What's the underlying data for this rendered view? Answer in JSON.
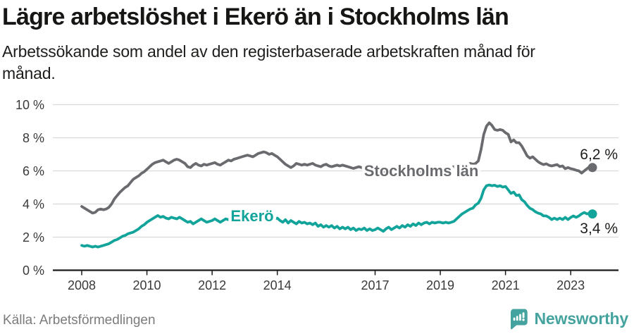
{
  "header": {
    "title": "Lägre arbetslöshet i Ekerö än i Stockholms län",
    "subtitle": "Arbetssökande som andel av den registerbaserade arbetskraften månad för månad."
  },
  "footer": {
    "source": "Källa: Arbetsförmedlingen",
    "brand": "Newsworthy",
    "brand_color": "#44a39e"
  },
  "chart_data": {
    "type": "line",
    "title": "Lägre arbetslöshet i Ekerö än i Stockholms län",
    "xlabel": "",
    "ylabel": "",
    "ylim": [
      0,
      10
    ],
    "grid": "horizontal",
    "legend_position": "inline-labels-on-lines",
    "x_unit": "month",
    "x_start": {
      "year": 2008,
      "month": 1
    },
    "x_end": {
      "year": 2023,
      "month": 9
    },
    "x_ticks": [
      2008,
      2010,
      2012,
      2014,
      2017,
      2019,
      2021,
      2023
    ],
    "y_ticks": [
      "0 %",
      "2 %",
      "4 %",
      "6 %",
      "8 %",
      "10 %"
    ],
    "axis_color": "#1a1a1a",
    "grid_color": "#dadada",
    "tick_label_color": "#3a3a3a",
    "end_label_color": "#1d1d1b",
    "series": [
      {
        "name": "Stockholms län",
        "color": "#6a6b6f",
        "end_label": "6,2 %",
        "last_value": 6.2,
        "values": [
          3.85,
          3.75,
          3.65,
          3.55,
          3.45,
          3.5,
          3.65,
          3.7,
          3.65,
          3.7,
          3.8,
          4.0,
          4.3,
          4.5,
          4.7,
          4.85,
          5.0,
          5.1,
          5.3,
          5.5,
          5.6,
          5.7,
          5.85,
          5.95,
          6.1,
          6.25,
          6.4,
          6.5,
          6.55,
          6.6,
          6.65,
          6.55,
          6.45,
          6.55,
          6.65,
          6.7,
          6.65,
          6.55,
          6.45,
          6.25,
          6.2,
          6.35,
          6.45,
          6.35,
          6.3,
          6.4,
          6.35,
          6.4,
          6.45,
          6.5,
          6.4,
          6.35,
          6.45,
          6.55,
          6.65,
          6.6,
          6.7,
          6.75,
          6.8,
          6.85,
          6.9,
          6.95,
          6.9,
          6.85,
          6.95,
          7.05,
          7.1,
          7.15,
          7.1,
          7.0,
          7.05,
          6.95,
          6.85,
          6.7,
          6.55,
          6.4,
          6.3,
          6.2,
          6.3,
          6.45,
          6.4,
          6.35,
          6.4,
          6.35,
          6.4,
          6.45,
          6.35,
          6.3,
          6.25,
          6.35,
          6.4,
          6.3,
          6.25,
          6.3,
          6.35,
          6.3,
          6.35,
          6.3,
          6.25,
          6.2,
          6.15,
          6.2,
          6.25,
          6.2,
          6.1,
          6.05,
          6.1,
          6.15,
          6.1,
          6.05,
          6.0,
          5.95,
          6.0,
          6.05,
          6.1,
          6.0,
          5.95,
          5.9,
          5.95,
          6.0,
          5.95,
          5.9,
          5.85,
          5.9,
          5.95,
          6.0,
          6.05,
          5.95,
          5.9,
          5.95,
          6.0,
          6.05,
          6.1,
          6.15,
          6.1,
          6.15,
          6.2,
          6.25,
          6.3,
          6.25,
          6.3,
          6.35,
          6.4,
          6.45,
          6.4,
          6.45,
          6.6,
          7.3,
          8.2,
          8.7,
          8.9,
          8.75,
          8.5,
          8.45,
          8.5,
          8.45,
          8.3,
          8.2,
          7.75,
          7.87,
          7.7,
          7.7,
          7.5,
          7.2,
          6.9,
          6.77,
          6.85,
          6.7,
          6.55,
          6.45,
          6.38,
          6.43,
          6.34,
          6.3,
          6.34,
          6.38,
          6.26,
          6.3,
          6.13,
          6.2,
          6.13,
          6.1,
          6.04,
          6.0,
          5.87,
          6.0,
          6.13,
          6.26,
          6.2
        ]
      },
      {
        "name": "Ekerö",
        "color": "#12a49a",
        "end_label": "3,4 %",
        "last_value": 3.4,
        "values": [
          1.5,
          1.45,
          1.5,
          1.45,
          1.4,
          1.45,
          1.4,
          1.45,
          1.5,
          1.55,
          1.6,
          1.7,
          1.8,
          1.85,
          1.95,
          2.05,
          2.1,
          2.2,
          2.25,
          2.3,
          2.4,
          2.5,
          2.65,
          2.75,
          2.9,
          3.0,
          3.1,
          3.2,
          3.3,
          3.2,
          3.25,
          3.15,
          3.1,
          3.2,
          3.15,
          3.1,
          3.2,
          3.1,
          3.0,
          2.9,
          2.95,
          2.8,
          2.9,
          3.0,
          3.1,
          3.0,
          2.9,
          2.95,
          3.0,
          3.1,
          3.0,
          2.9,
          3.0,
          3.1,
          3.05,
          3.15,
          3.2,
          3.1,
          3.0,
          3.1,
          3.1,
          3.2,
          3.15,
          3.05,
          3.1,
          3.2,
          3.1,
          3.15,
          3.05,
          3.1,
          3.15,
          3.1,
          3.15,
          3.0,
          2.9,
          3.05,
          2.85,
          3.0,
          2.9,
          2.8,
          2.95,
          2.85,
          2.9,
          2.8,
          2.85,
          2.75,
          2.85,
          2.65,
          2.75,
          2.6,
          2.7,
          2.6,
          2.7,
          2.55,
          2.65,
          2.5,
          2.6,
          2.5,
          2.6,
          2.45,
          2.55,
          2.4,
          2.5,
          2.45,
          2.55,
          2.4,
          2.5,
          2.4,
          2.45,
          2.55,
          2.45,
          2.35,
          2.5,
          2.6,
          2.45,
          2.55,
          2.65,
          2.55,
          2.7,
          2.6,
          2.75,
          2.65,
          2.8,
          2.7,
          2.85,
          2.75,
          2.85,
          2.9,
          2.8,
          2.9,
          2.85,
          2.9,
          2.9,
          2.85,
          2.9,
          2.85,
          2.9,
          2.95,
          3.1,
          3.25,
          3.4,
          3.5,
          3.6,
          3.7,
          3.75,
          3.95,
          4.05,
          4.35,
          4.85,
          5.1,
          5.15,
          5.1,
          5.13,
          5.06,
          5.1,
          5.02,
          5.06,
          4.85,
          4.64,
          4.72,
          4.51,
          4.55,
          4.26,
          4.13,
          3.91,
          3.74,
          3.66,
          3.53,
          3.45,
          3.4,
          3.28,
          3.28,
          3.19,
          3.06,
          3.15,
          3.06,
          3.15,
          3.06,
          3.19,
          3.06,
          3.19,
          3.28,
          3.19,
          3.28,
          3.4,
          3.49,
          3.4,
          3.45,
          3.4
        ]
      }
    ]
  }
}
